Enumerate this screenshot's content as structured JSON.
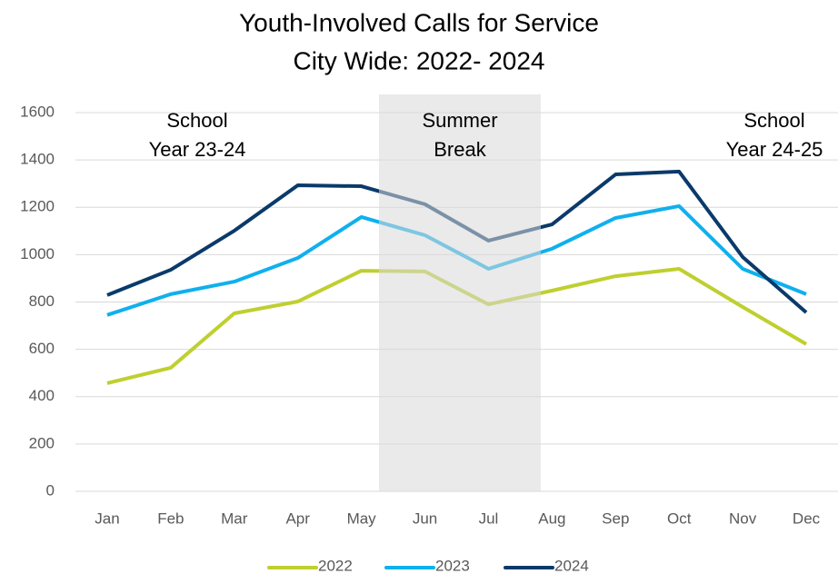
{
  "chart_data": {
    "type": "line",
    "title": [
      "Youth-Involved Calls for Service",
      "City Wide: 2022- 2024"
    ],
    "categories": [
      "Jan",
      "Feb",
      "Mar",
      "Apr",
      "May",
      "Jun",
      "Jul",
      "Aug",
      "Sep",
      "Oct",
      "Nov",
      "Dec"
    ],
    "series": [
      {
        "name": "2022",
        "color": "#bfcf2f",
        "values": [
          457,
          522,
          752,
          802,
          932,
          929,
          790,
          848,
          909,
          940,
          779,
          622
        ]
      },
      {
        "name": "2023",
        "color": "#0fb0ee",
        "values": [
          745,
          833,
          886,
          986,
          1159,
          1082,
          940,
          1025,
          1155,
          1205,
          940,
          833
        ]
      },
      {
        "name": "2024",
        "color": "#0a3a6a",
        "values": [
          829,
          936,
          1101,
          1293,
          1289,
          1213,
          1059,
          1128,
          1339,
          1351,
          990,
          756
        ]
      }
    ],
    "annotations": [
      [
        "School",
        "Year 23-24"
      ],
      [
        "Summer",
        "Break"
      ],
      [
        "School",
        "Year 24-25"
      ]
    ],
    "ylim": [
      0,
      1600
    ],
    "yticks": [
      0,
      200,
      400,
      600,
      800,
      1000,
      1200,
      1400,
      1600
    ],
    "grid": true,
    "legend": "bottom"
  }
}
